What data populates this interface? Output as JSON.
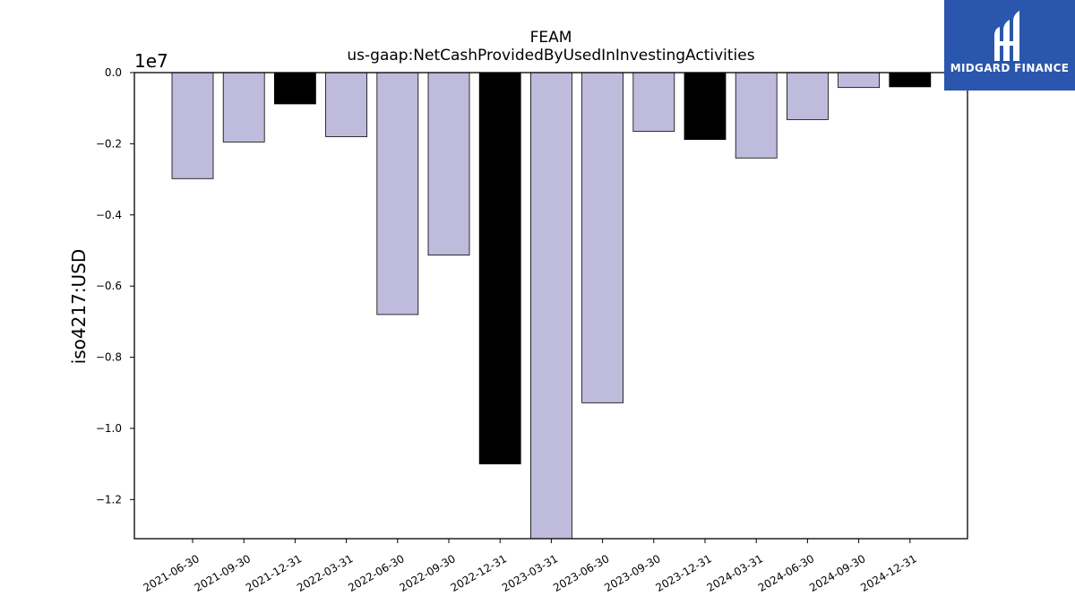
{
  "chart_data": {
    "type": "bar",
    "title": "FEAM",
    "subtitle": "us-gaap:NetCashProvidedByUsedInInvestingActivities",
    "ylabel": "iso4217:USD",
    "y_offset_label": "1e7",
    "scale": 10000000,
    "ylim": [
      -1.31,
      0.0
    ],
    "yticks": [
      0.0,
      -0.2,
      -0.4,
      -0.6,
      -0.8,
      -1.0,
      -1.2
    ],
    "ytick_labels": [
      "0.0",
      "−0.2",
      "−0.4",
      "−0.6",
      "−0.8",
      "−1.0",
      "−1.2"
    ],
    "categories": [
      "2021-06-30",
      "2021-09-30",
      "2021-12-31",
      "2022-03-31",
      "2022-06-30",
      "2022-09-30",
      "2022-12-31",
      "2023-03-31",
      "2023-06-30",
      "2023-09-30",
      "2023-12-31",
      "2024-03-31",
      "2024-06-30",
      "2024-09-30",
      "2024-12-31"
    ],
    "values": [
      -2980000,
      -1950000,
      -880000,
      -1800000,
      -6800000,
      -5130000,
      -11000000,
      -13100000,
      -9280000,
      -1650000,
      -1880000,
      -2400000,
      -1320000,
      -420000,
      -400000
    ],
    "bar_colors": [
      "#bebbdc",
      "#bebbdc",
      "#000000",
      "#bebbdc",
      "#bebbdc",
      "#bebbdc",
      "#000000",
      "#bebbdc",
      "#bebbdc",
      "#bebbdc",
      "#000000",
      "#bebbdc",
      "#bebbdc",
      "#bebbdc",
      "#000000"
    ],
    "grid": false,
    "legend": "none"
  },
  "logo": {
    "text": "MIDGARD FINANCE",
    "background": "#2a57ad",
    "icon": "midgard-logo-icon"
  }
}
